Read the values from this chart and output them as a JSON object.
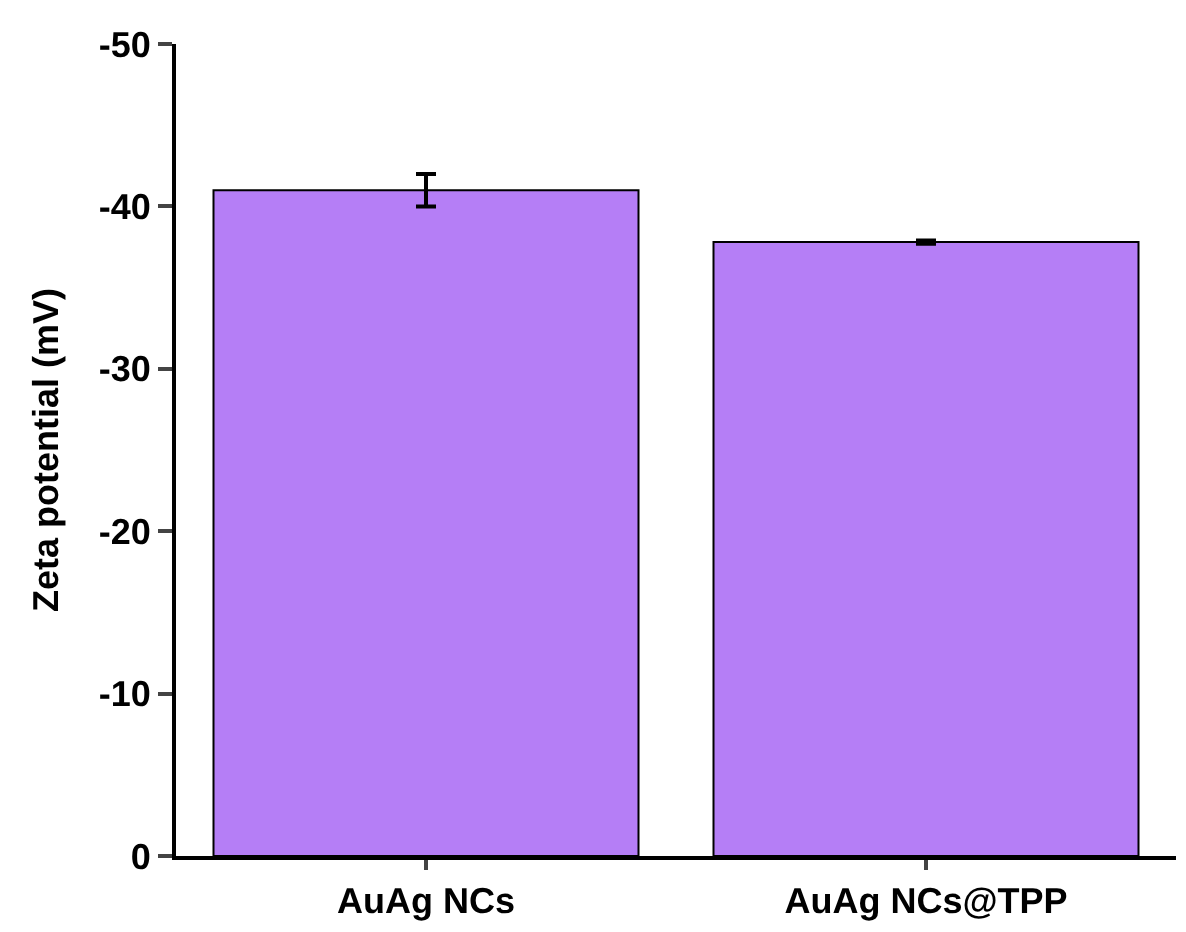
{
  "chart_data": {
    "type": "bar",
    "ylabel": "Zeta potential (mV)",
    "categories": [
      "AuAg NCs",
      "AuAg NCs@TPP"
    ],
    "values": [
      -41.0,
      -37.8
    ],
    "errors": [
      1.0,
      0.1
    ],
    "color": "#b57ef6",
    "ylim": [
      0,
      -50
    ],
    "yticks": [
      0,
      -10,
      -20,
      -30,
      -40,
      -50
    ]
  }
}
